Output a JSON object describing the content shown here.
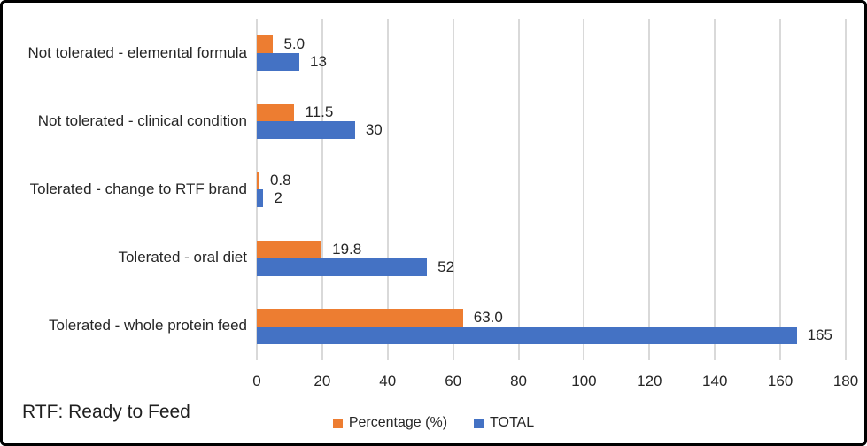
{
  "footnote": "RTF: Ready to Feed",
  "chart_data": {
    "type": "bar",
    "orientation": "horizontal",
    "title": "",
    "xlabel": "",
    "ylabel": "",
    "categories": [
      "Not tolerated - elemental formula",
      "Not tolerated - clinical condition",
      "Tolerated - change to RTF brand",
      "Tolerated - oral diet",
      "Tolerated - whole protein feed"
    ],
    "series": [
      {
        "name": "Percentage (%)",
        "color": "#ED7D31",
        "values": [
          5.0,
          11.5,
          0.8,
          19.8,
          63.0
        ],
        "data_labels": [
          "5.0",
          "11.5",
          "0.8",
          "19.8",
          "63.0"
        ]
      },
      {
        "name": "TOTAL",
        "color": "#4472C4",
        "values": [
          13,
          30,
          2,
          52,
          165
        ],
        "data_labels": [
          "13",
          "30",
          "2",
          "52",
          "165"
        ]
      }
    ],
    "xlim": [
      0,
      180
    ],
    "x_ticks": [
      0,
      20,
      40,
      60,
      80,
      100,
      120,
      140,
      160,
      180
    ],
    "gridlines": "vertical",
    "gridline_color": "#D9D9D9",
    "text_color": "#262626",
    "legend_position": "bottom"
  }
}
